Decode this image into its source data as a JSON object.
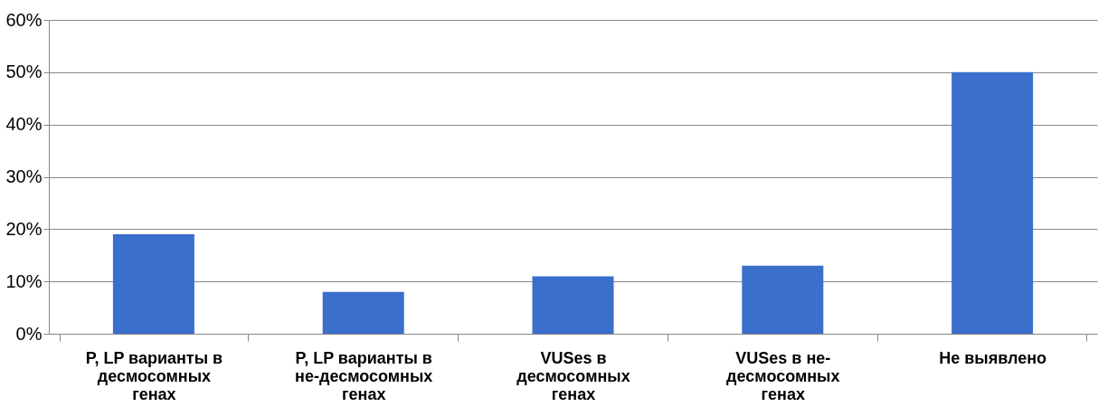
{
  "chart_data": {
    "type": "bar",
    "categories": [
      "P, LP варианты в десмосомных генах",
      "P, LP варианты в не-десмосомных генах",
      "VUSes в десмосомных генах",
      "VUSes в не-десмосомных генах",
      "Не выявлено"
    ],
    "values": [
      19,
      8,
      11,
      13,
      50
    ],
    "color": "#3a6fcc",
    "ylim": [
      0,
      60
    ],
    "yticks": [
      {
        "value": 0,
        "label": "0%"
      },
      {
        "value": 10,
        "label": "10%"
      },
      {
        "value": 20,
        "label": "20%"
      },
      {
        "value": 30,
        "label": "30%"
      },
      {
        "value": 40,
        "label": "40%"
      },
      {
        "value": 50,
        "label": "50%"
      },
      {
        "value": 60,
        "label": "60%"
      }
    ],
    "grid": "y"
  }
}
